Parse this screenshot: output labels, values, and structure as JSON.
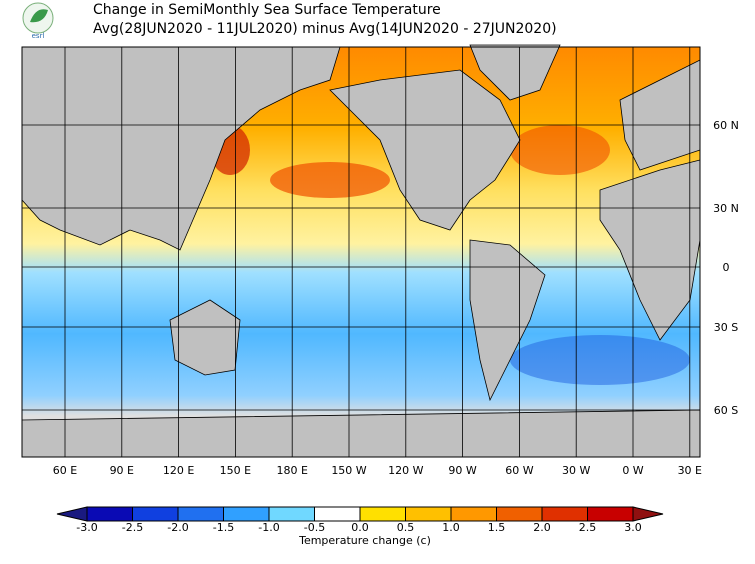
{
  "header": {
    "logo_text": "esrl",
    "title": "Change in SemiMonthly Sea Surface Temperature",
    "subtitle": "Avg(28JUN2020 - 11JUL2020) minus Avg(14JUN2020 - 27JUN2020)"
  },
  "map": {
    "lon_labels": [
      "60 E",
      "90 E",
      "120 E",
      "150 E",
      "180 E",
      "150 W",
      "120 W",
      "90 W",
      "60 W",
      "30 W",
      "0 W",
      "30 E"
    ],
    "lat_labels": [
      "60 N",
      "30 N",
      "0",
      "30 S",
      "60 S"
    ]
  },
  "colorbar": {
    "ticks": [
      "-3.0",
      "-2.5",
      "-2.0",
      "-1.5",
      "-1.0",
      "-0.5",
      "0.0",
      "0.5",
      "1.0",
      "1.5",
      "2.0",
      "2.5",
      "3.0"
    ],
    "colors": [
      "#1a1a80",
      "#0a0ab4",
      "#1040e0",
      "#2070f0",
      "#30a0ff",
      "#70d8ff",
      "#ffffff",
      "#ffe000",
      "#ffc000",
      "#ff9800",
      "#f06000",
      "#e03000",
      "#c80000",
      "#901010"
    ],
    "label": "Temperature change  (c)"
  }
}
